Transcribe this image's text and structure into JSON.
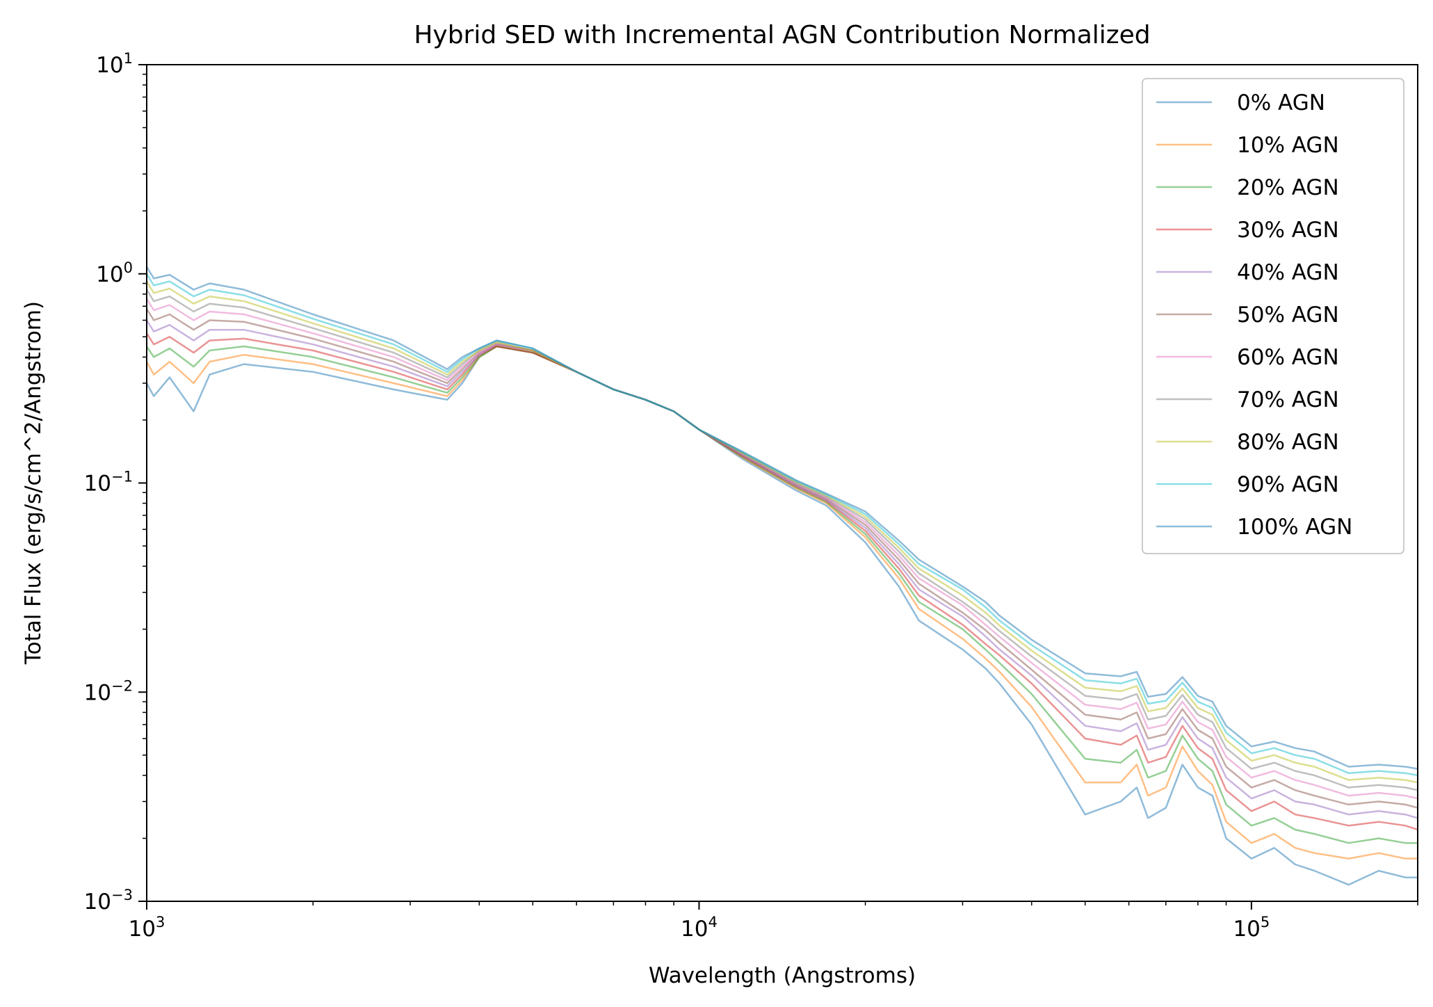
{
  "chart_data": {
    "type": "line",
    "title": "Hybrid SED with Incremental AGN Contribution Normalized",
    "xlabel": "Wavelength (Angstroms)",
    "ylabel": "Total Flux (erg/s/cm^2/Angstrom)",
    "xscale": "log",
    "yscale": "log",
    "xlim": [
      1000,
      200000
    ],
    "ylim": [
      0.001,
      10
    ],
    "x_ticks": [
      {
        "value": 1000,
        "base": "10",
        "exp": "3"
      },
      {
        "value": 10000,
        "base": "10",
        "exp": "4"
      },
      {
        "value": 100000,
        "base": "10",
        "exp": "5"
      }
    ],
    "y_ticks": [
      {
        "value": 10,
        "base": "10",
        "exp": "1"
      },
      {
        "value": 1,
        "base": "10",
        "exp": "0"
      },
      {
        "value": 0.1,
        "base": "10",
        "exp": "−1"
      },
      {
        "value": 0.01,
        "base": "10",
        "exp": "−2"
      },
      {
        "value": 0.001,
        "base": "10",
        "exp": "−3"
      }
    ],
    "grid": false,
    "legend_position": "top-right",
    "x": [
      1000,
      1030,
      1100,
      1216,
      1300,
      1500,
      2000,
      2800,
      3500,
      3727,
      4000,
      4300,
      5000,
      6000,
      7000,
      8000,
      9000,
      10000,
      12000,
      15000,
      17000,
      20000,
      23000,
      25000,
      30000,
      33000,
      35000,
      40000,
      50000,
      58000,
      62000,
      65000,
      70000,
      75000,
      80000,
      85000,
      90000,
      100000,
      110000,
      120000,
      130000,
      150000,
      170000,
      190000,
      200000
    ],
    "series": [
      {
        "name": "0% AGN",
        "color": "#1f77b4",
        "values": [
          0.3,
          0.26,
          0.32,
          0.22,
          0.33,
          0.37,
          0.34,
          0.28,
          0.25,
          0.3,
          0.4,
          0.45,
          0.42,
          0.34,
          0.28,
          0.25,
          0.22,
          0.18,
          0.13,
          0.092,
          0.078,
          0.052,
          0.032,
          0.022,
          0.016,
          0.013,
          0.011,
          0.007,
          0.0026,
          0.003,
          0.0035,
          0.0025,
          0.0028,
          0.0045,
          0.0035,
          0.0032,
          0.002,
          0.0016,
          0.0018,
          0.0015,
          0.0014,
          0.0012,
          0.0014,
          0.0013,
          0.0013
        ]
      },
      {
        "name": "10% AGN",
        "color": "#ff7f0e",
        "values": [
          0.38,
          0.33,
          0.38,
          0.3,
          0.38,
          0.41,
          0.37,
          0.3,
          0.26,
          0.31,
          0.4,
          0.45,
          0.42,
          0.34,
          0.28,
          0.25,
          0.22,
          0.18,
          0.132,
          0.094,
          0.08,
          0.055,
          0.035,
          0.025,
          0.018,
          0.0145,
          0.0125,
          0.0085,
          0.0037,
          0.0037,
          0.0045,
          0.0032,
          0.0035,
          0.0055,
          0.0042,
          0.0036,
          0.0024,
          0.0019,
          0.0021,
          0.0018,
          0.0017,
          0.0016,
          0.0017,
          0.0016,
          0.0016
        ]
      },
      {
        "name": "20% AGN",
        "color": "#2ca02c",
        "values": [
          0.45,
          0.4,
          0.44,
          0.36,
          0.43,
          0.45,
          0.4,
          0.32,
          0.27,
          0.32,
          0.4,
          0.45,
          0.42,
          0.34,
          0.28,
          0.25,
          0.22,
          0.18,
          0.133,
          0.095,
          0.081,
          0.057,
          0.037,
          0.027,
          0.02,
          0.016,
          0.0138,
          0.0098,
          0.0048,
          0.0046,
          0.0053,
          0.0039,
          0.0042,
          0.0062,
          0.0048,
          0.0042,
          0.0029,
          0.0023,
          0.0025,
          0.0022,
          0.0021,
          0.0019,
          0.002,
          0.0019,
          0.0019
        ]
      },
      {
        "name": "30% AGN",
        "color": "#d62728",
        "values": [
          0.52,
          0.46,
          0.5,
          0.42,
          0.48,
          0.49,
          0.43,
          0.34,
          0.28,
          0.33,
          0.41,
          0.45,
          0.42,
          0.34,
          0.28,
          0.25,
          0.22,
          0.18,
          0.134,
          0.096,
          0.082,
          0.059,
          0.039,
          0.029,
          0.021,
          0.017,
          0.015,
          0.011,
          0.006,
          0.0056,
          0.0062,
          0.0046,
          0.0049,
          0.0069,
          0.0054,
          0.0048,
          0.0034,
          0.0027,
          0.003,
          0.0026,
          0.0025,
          0.0023,
          0.0024,
          0.0023,
          0.0022
        ]
      },
      {
        "name": "40% AGN",
        "color": "#9467bd",
        "values": [
          0.6,
          0.53,
          0.57,
          0.48,
          0.54,
          0.54,
          0.46,
          0.36,
          0.29,
          0.34,
          0.41,
          0.46,
          0.43,
          0.34,
          0.28,
          0.25,
          0.22,
          0.18,
          0.135,
          0.097,
          0.083,
          0.061,
          0.041,
          0.031,
          0.023,
          0.0185,
          0.016,
          0.012,
          0.0069,
          0.0065,
          0.0071,
          0.0053,
          0.0056,
          0.0076,
          0.006,
          0.0054,
          0.0039,
          0.0031,
          0.0034,
          0.003,
          0.0029,
          0.0026,
          0.0027,
          0.0026,
          0.0025
        ]
      },
      {
        "name": "50% AGN",
        "color": "#8c564b",
        "values": [
          0.68,
          0.6,
          0.64,
          0.54,
          0.6,
          0.59,
          0.49,
          0.38,
          0.3,
          0.35,
          0.42,
          0.46,
          0.43,
          0.34,
          0.28,
          0.25,
          0.22,
          0.18,
          0.136,
          0.098,
          0.084,
          0.063,
          0.043,
          0.033,
          0.024,
          0.0198,
          0.0172,
          0.0128,
          0.0078,
          0.0074,
          0.008,
          0.006,
          0.0063,
          0.0083,
          0.0066,
          0.006,
          0.0044,
          0.0035,
          0.0038,
          0.0034,
          0.0032,
          0.0029,
          0.003,
          0.0029,
          0.0028
        ]
      },
      {
        "name": "60% AGN",
        "color": "#e377c2",
        "values": [
          0.76,
          0.67,
          0.71,
          0.6,
          0.66,
          0.64,
          0.52,
          0.4,
          0.31,
          0.36,
          0.42,
          0.46,
          0.43,
          0.34,
          0.28,
          0.25,
          0.22,
          0.18,
          0.137,
          0.099,
          0.085,
          0.065,
          0.045,
          0.035,
          0.026,
          0.021,
          0.0184,
          0.0138,
          0.0087,
          0.0083,
          0.0089,
          0.0067,
          0.007,
          0.009,
          0.0072,
          0.0066,
          0.0049,
          0.0039,
          0.0042,
          0.0038,
          0.0036,
          0.0032,
          0.0033,
          0.0032,
          0.0031
        ]
      },
      {
        "name": "70% AGN",
        "color": "#7f7f7f",
        "values": [
          0.84,
          0.74,
          0.78,
          0.66,
          0.72,
          0.69,
          0.55,
          0.42,
          0.32,
          0.37,
          0.43,
          0.47,
          0.43,
          0.34,
          0.28,
          0.25,
          0.22,
          0.18,
          0.138,
          0.1,
          0.086,
          0.067,
          0.047,
          0.037,
          0.027,
          0.0225,
          0.0196,
          0.0148,
          0.0096,
          0.0092,
          0.0098,
          0.0074,
          0.0077,
          0.0097,
          0.0078,
          0.0072,
          0.0054,
          0.0043,
          0.0046,
          0.0042,
          0.004,
          0.0035,
          0.0036,
          0.0035,
          0.0034
        ]
      },
      {
        "name": "80% AGN",
        "color": "#bcbd22",
        "values": [
          0.92,
          0.81,
          0.85,
          0.72,
          0.78,
          0.74,
          0.58,
          0.44,
          0.33,
          0.38,
          0.43,
          0.47,
          0.43,
          0.34,
          0.28,
          0.25,
          0.22,
          0.18,
          0.139,
          0.101,
          0.087,
          0.069,
          0.049,
          0.039,
          0.029,
          0.024,
          0.0208,
          0.0158,
          0.0105,
          0.0101,
          0.0107,
          0.0081,
          0.0084,
          0.0104,
          0.0084,
          0.0078,
          0.0059,
          0.0047,
          0.005,
          0.0046,
          0.0044,
          0.0038,
          0.0039,
          0.0038,
          0.0037
        ]
      },
      {
        "name": "90% AGN",
        "color": "#17becf",
        "values": [
          1.0,
          0.88,
          0.92,
          0.78,
          0.84,
          0.79,
          0.61,
          0.46,
          0.34,
          0.39,
          0.44,
          0.48,
          0.44,
          0.34,
          0.28,
          0.25,
          0.22,
          0.18,
          0.14,
          0.102,
          0.088,
          0.071,
          0.051,
          0.041,
          0.031,
          0.0255,
          0.022,
          0.0168,
          0.0114,
          0.011,
          0.0116,
          0.0088,
          0.0091,
          0.0111,
          0.009,
          0.0084,
          0.0064,
          0.0051,
          0.0054,
          0.005,
          0.0048,
          0.0041,
          0.0042,
          0.0041,
          0.004
        ]
      },
      {
        "name": "100% AGN",
        "color": "#1f77b4",
        "values": [
          1.08,
          0.95,
          0.99,
          0.84,
          0.9,
          0.84,
          0.64,
          0.48,
          0.35,
          0.4,
          0.44,
          0.48,
          0.44,
          0.34,
          0.28,
          0.25,
          0.22,
          0.18,
          0.141,
          0.103,
          0.089,
          0.073,
          0.053,
          0.043,
          0.032,
          0.027,
          0.0232,
          0.0178,
          0.0123,
          0.0119,
          0.0125,
          0.0095,
          0.0098,
          0.0118,
          0.0096,
          0.009,
          0.0069,
          0.0055,
          0.0058,
          0.0054,
          0.0052,
          0.0044,
          0.0045,
          0.0044,
          0.0043
        ]
      }
    ]
  }
}
